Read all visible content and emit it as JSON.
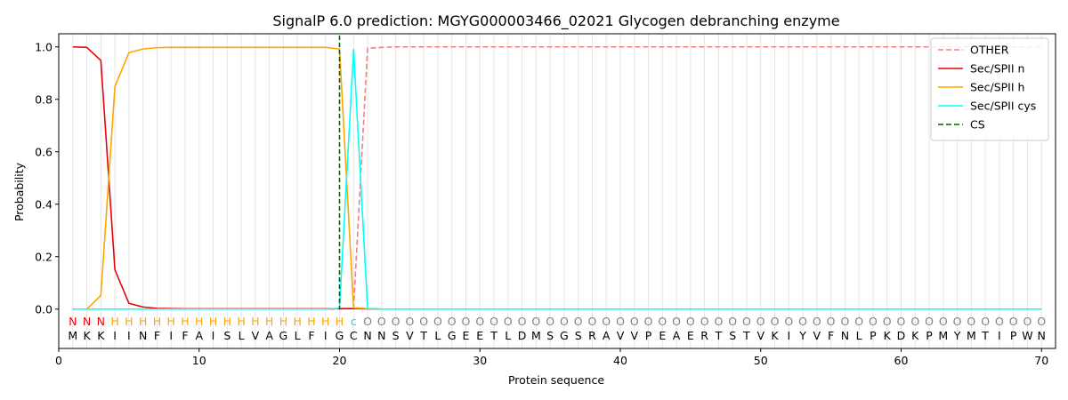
{
  "chart_data": {
    "type": "line",
    "title": "SignalP 6.0 prediction: MGYG000003466_02021 Glycogen debranching enzyme",
    "xlabel": "Protein sequence",
    "ylabel": "Probability",
    "xlim": [
      0,
      71
    ],
    "ylim": [
      -0.15,
      1.05
    ],
    "xticks": [
      0,
      10,
      20,
      30,
      40,
      50,
      60,
      70
    ],
    "yticks": [
      0.0,
      0.2,
      0.4,
      0.6,
      0.8,
      1.0
    ],
    "xtick_labels": [
      "0",
      "10",
      "20",
      "30",
      "40",
      "50",
      "60",
      "70"
    ],
    "ytick_labels": [
      "0.0",
      "0.2",
      "0.4",
      "0.6",
      "0.8",
      "1.0"
    ],
    "legend_position": "top-right",
    "sequence": [
      "M",
      "K",
      "K",
      "I",
      "I",
      "N",
      "F",
      "I",
      "F",
      "A",
      "I",
      "S",
      "L",
      "V",
      "A",
      "G",
      "L",
      "F",
      "I",
      "G",
      "C",
      "N",
      "N",
      "S",
      "V",
      "T",
      "L",
      "G",
      "E",
      "E",
      "T",
      "L",
      "D",
      "M",
      "S",
      "G",
      "S",
      "R",
      "A",
      "V",
      "V",
      "P",
      "E",
      "A",
      "E",
      "R",
      "T",
      "S",
      "T",
      "V",
      "K",
      "I",
      "Y",
      "V",
      "F",
      "N",
      "L",
      "P",
      "K",
      "D",
      "K",
      "P",
      "M",
      "Y",
      "M",
      "T",
      "I",
      "P",
      "W",
      "N"
    ],
    "annotations": [
      "N",
      "N",
      "N",
      "H",
      "H",
      "H",
      "H",
      "H",
      "H",
      "H",
      "H",
      "H",
      "H",
      "H",
      "H",
      "H",
      "H",
      "H",
      "H",
      "H",
      "c",
      "O",
      "O",
      "O",
      "O",
      "O",
      "O",
      "O",
      "O",
      "O",
      "O",
      "O",
      "O",
      "O",
      "O",
      "O",
      "O",
      "O",
      "O",
      "O",
      "O",
      "O",
      "O",
      "O",
      "O",
      "O",
      "O",
      "O",
      "O",
      "O",
      "O",
      "O",
      "O",
      "O",
      "O",
      "O",
      "O",
      "O",
      "O",
      "O",
      "O",
      "O",
      "O",
      "O",
      "O",
      "O",
      "O",
      "O",
      "O",
      "O"
    ],
    "annotation_colors": {
      "N": "#ff0000",
      "H": "#ffa500",
      "c": "#00e5ee",
      "O": "#808080"
    },
    "cleavage_site": 20,
    "series": [
      {
        "name": "OTHER",
        "color": "#f08080",
        "dash": "dashed",
        "values": [
          0,
          0,
          0,
          0,
          0,
          0,
          0,
          0,
          0,
          0,
          0,
          0,
          0,
          0,
          0,
          0,
          0,
          0,
          0,
          0,
          0.003,
          0.995,
          0.998,
          1,
          1,
          1,
          1,
          1,
          1,
          1,
          1,
          1,
          1,
          1,
          1,
          1,
          1,
          1,
          1,
          1,
          1,
          1,
          1,
          1,
          1,
          1,
          1,
          1,
          1,
          1,
          1,
          1,
          1,
          1,
          1,
          1,
          1,
          1,
          1,
          1,
          1,
          1,
          1,
          1,
          1,
          1,
          1,
          1,
          1,
          1
        ]
      },
      {
        "name": "Sec/SPII n",
        "color": "#e8000b",
        "dash": "solid",
        "values": [
          1.0,
          0.998,
          0.948,
          0.15,
          0.022,
          0.008,
          0.003,
          0.002,
          0.001,
          0.001,
          0.001,
          0.001,
          0.001,
          0.001,
          0.001,
          0.001,
          0.001,
          0.001,
          0.001,
          0.002,
          0.002,
          0.001,
          0,
          0,
          0,
          0,
          0,
          0,
          0,
          0,
          0,
          0,
          0,
          0,
          0,
          0,
          0,
          0,
          0,
          0,
          0,
          0,
          0,
          0,
          0,
          0,
          0,
          0,
          0,
          0,
          0,
          0,
          0,
          0,
          0,
          0,
          0,
          0,
          0,
          0,
          0,
          0,
          0,
          0,
          0,
          0,
          0,
          0,
          0,
          0
        ]
      },
      {
        "name": "Sec/SPII h",
        "color": "#ffa500",
        "dash": "solid",
        "values": [
          0,
          0,
          0.052,
          0.848,
          0.978,
          0.992,
          0.997,
          0.998,
          0.998,
          0.998,
          0.998,
          0.998,
          0.998,
          0.998,
          0.998,
          0.998,
          0.998,
          0.998,
          0.998,
          0.992,
          0.005,
          0.002,
          0,
          0,
          0,
          0,
          0,
          0,
          0,
          0,
          0,
          0,
          0,
          0,
          0,
          0,
          0,
          0,
          0,
          0,
          0,
          0,
          0,
          0,
          0,
          0,
          0,
          0,
          0,
          0,
          0,
          0,
          0,
          0,
          0,
          0,
          0,
          0,
          0,
          0,
          0,
          0,
          0,
          0,
          0,
          0,
          0,
          0,
          0,
          0
        ]
      },
      {
        "name": "Sec/SPII cys",
        "color": "#00ffff",
        "dash": "solid",
        "values": [
          0,
          0,
          0,
          0,
          0,
          0,
          0,
          0,
          0,
          0,
          0,
          0,
          0,
          0,
          0,
          0,
          0,
          0,
          0,
          0.003,
          0.99,
          0.002,
          0,
          0,
          0,
          0,
          0,
          0,
          0,
          0,
          0,
          0,
          0,
          0,
          0,
          0,
          0,
          0,
          0,
          0,
          0,
          0,
          0,
          0,
          0,
          0,
          0,
          0,
          0,
          0,
          0,
          0,
          0,
          0,
          0,
          0,
          0,
          0,
          0,
          0,
          0,
          0,
          0,
          0,
          0,
          0,
          0,
          0,
          0,
          0
        ]
      },
      {
        "name": "CS",
        "color": "#006400",
        "dash": "dashed"
      }
    ]
  }
}
